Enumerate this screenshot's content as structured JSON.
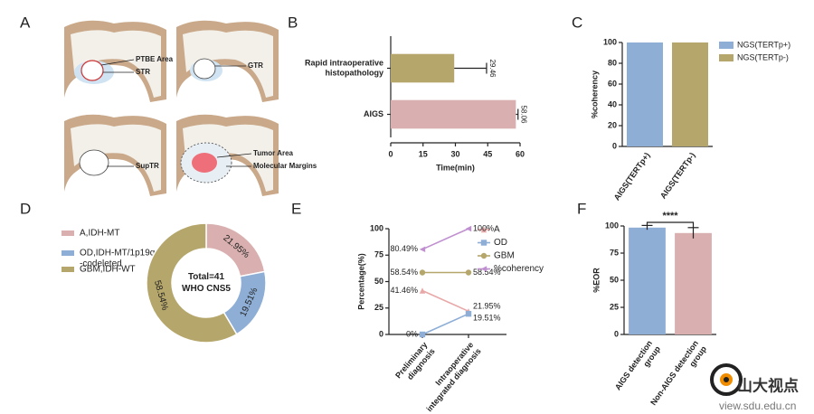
{
  "panel_a": {
    "label": "A",
    "annotations": [
      "PTBE Area",
      "STR",
      "GTR",
      "SupTR",
      "Tumor Area",
      "Molecular Margins"
    ]
  },
  "chart_data": [
    {
      "type": "barh",
      "label": "B",
      "categories": [
        [
          "Rapid intraoperative",
          "histopathology"
        ],
        [
          "AIGS"
        ]
      ],
      "values": [
        29.46,
        58.06
      ],
      "errors": [
        15,
        1
      ],
      "colors": [
        "#b5a66b",
        "#d9afaf"
      ],
      "xlim": [
        0,
        60
      ],
      "xticks": [
        0,
        15,
        30,
        45,
        60
      ],
      "xlabel": "Time(min)"
    },
    {
      "type": "bar",
      "label": "C",
      "categories": [
        [
          "AIGS(TERTp+)"
        ],
        [
          "AIGS(TERTp-)"
        ]
      ],
      "series": [
        {
          "name": "NGS(TERTp+)",
          "color": "#8eaed6",
          "values": [
            100,
            null
          ]
        },
        {
          "name": "NGS(TERTp-)",
          "color": "#b5a66b",
          "values": [
            null,
            100
          ]
        }
      ],
      "ylim": [
        0,
        100
      ],
      "yticks": [
        0,
        20,
        40,
        60,
        80,
        100
      ],
      "ylabel": "%coherency"
    },
    {
      "type": "donut",
      "label": "D",
      "categories": [
        [
          "A,IDH-MT"
        ],
        [
          "OD,IDH-MT/1p19q",
          "-codeleted"
        ],
        [
          "GBM,IDH-WT"
        ]
      ],
      "values": [
        21.95,
        19.51,
        58.54
      ],
      "value_labels": [
        "21.95%",
        "19.51%",
        "58.54%"
      ],
      "colors": [
        "#d9afaf",
        "#8eaed6",
        "#b5a66b"
      ],
      "center_text": [
        "Total=41",
        "WHO CNS5"
      ]
    },
    {
      "type": "line",
      "label": "E",
      "categories": [
        [
          "Preliminary",
          "diagnosis"
        ],
        [
          "Intraoperative",
          "integrated diagnosis"
        ]
      ],
      "series": [
        {
          "name": "A",
          "color": "#e8a8a8",
          "marker": "triangle",
          "values": [
            41.46,
            21.95
          ],
          "value_labels": [
            "41.46%",
            "21.95%"
          ]
        },
        {
          "name": "OD",
          "color": "#8eaed6",
          "marker": "square",
          "values": [
            0,
            19.51
          ],
          "value_labels": [
            "0%",
            "19.51%"
          ]
        },
        {
          "name": "GBM",
          "color": "#b5a66b",
          "marker": "circle",
          "values": [
            58.54,
            58.54
          ],
          "value_labels": [
            "58.54%",
            "58.54%"
          ]
        },
        {
          "name": "%coherency",
          "color": "#c08fd0",
          "marker": "triangle-left",
          "values": [
            80.49,
            100
          ],
          "value_labels": [
            "80.49%",
            "100%"
          ]
        }
      ],
      "ylim": [
        0,
        100
      ],
      "yticks": [
        0,
        25,
        50,
        75,
        100
      ],
      "ylabel": "Percentage(%)"
    },
    {
      "type": "bar",
      "label": "F",
      "categories": [
        [
          "AIGS detection",
          "group"
        ],
        [
          "Non-AIGS detection",
          "group"
        ]
      ],
      "values": [
        98.5,
        93.5
      ],
      "errors": [
        2,
        5
      ],
      "colors": [
        "#8eaed6",
        "#d9afaf"
      ],
      "ylim": [
        0,
        100
      ],
      "yticks": [
        0,
        25,
        50,
        75,
        100
      ],
      "ylabel": "%EOR",
      "significance": "****"
    }
  ],
  "watermark": {
    "name": "山大视点",
    "url": "view.sdu.edu.cn"
  }
}
